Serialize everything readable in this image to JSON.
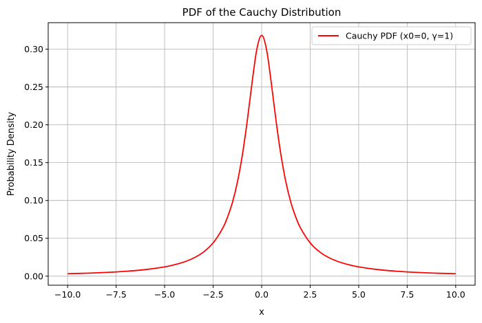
{
  "chart_data": {
    "type": "line",
    "title": "PDF of the Cauchy Distribution",
    "xlabel": "x",
    "ylabel": "Probability Density",
    "xlim": [
      -11,
      11
    ],
    "ylim": [
      -0.012,
      0.335
    ],
    "xticks": [
      -10.0,
      -7.5,
      -5.0,
      -2.5,
      0.0,
      2.5,
      5.0,
      7.5,
      10.0
    ],
    "xtick_labels": [
      "−10.0",
      "−7.5",
      "−5.0",
      "−2.5",
      "0.0",
      "2.5",
      "5.0",
      "7.5",
      "10.0"
    ],
    "yticks": [
      0.0,
      0.05,
      0.1,
      0.15,
      0.2,
      0.25,
      0.3
    ],
    "ytick_labels": [
      "0.00",
      "0.05",
      "0.10",
      "0.15",
      "0.20",
      "0.25",
      "0.30"
    ],
    "grid": true,
    "legend_position": "top-right",
    "series": [
      {
        "name": "Cauchy PDF (x0=0, γ=1)",
        "color": "#ff0000",
        "x": [
          -10,
          -9,
          -8,
          -7,
          -6,
          -5,
          -4.5,
          -4,
          -3.5,
          -3,
          -2.5,
          -2,
          -1.75,
          -1.5,
          -1.25,
          -1,
          -0.75,
          -0.5,
          -0.25,
          0,
          0.25,
          0.5,
          0.75,
          1,
          1.25,
          1.5,
          1.75,
          2,
          2.5,
          3,
          3.5,
          4,
          4.5,
          5,
          6,
          7,
          8,
          9,
          10
        ],
        "y": [
          0.0032,
          0.0039,
          0.0049,
          0.0064,
          0.0086,
          0.0122,
          0.015,
          0.0187,
          0.024,
          0.0318,
          0.0439,
          0.0637,
          0.0786,
          0.0979,
          0.1242,
          0.1592,
          0.2037,
          0.2546,
          0.2996,
          0.3183,
          0.2996,
          0.2546,
          0.2037,
          0.1592,
          0.1242,
          0.0979,
          0.0786,
          0.0637,
          0.0439,
          0.0318,
          0.024,
          0.0187,
          0.015,
          0.0122,
          0.0086,
          0.0064,
          0.0049,
          0.0039,
          0.0032
        ]
      }
    ]
  }
}
